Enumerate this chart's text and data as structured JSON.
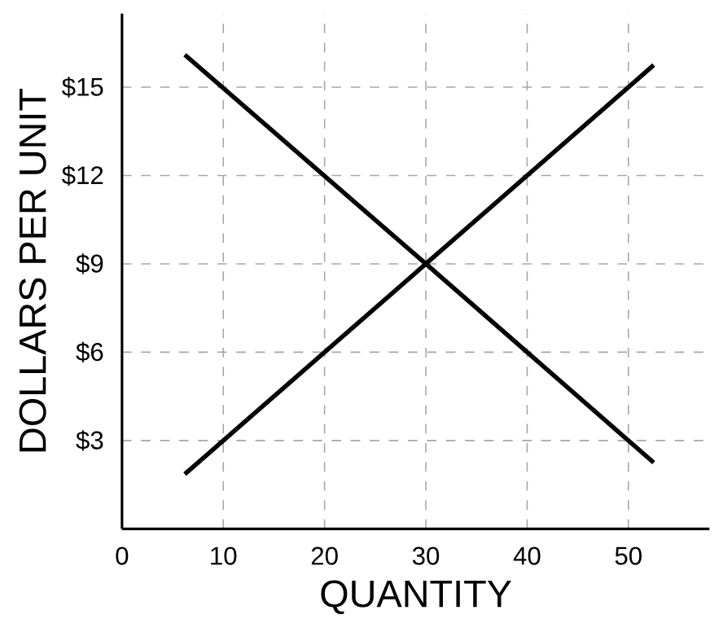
{
  "chart_data": {
    "type": "line",
    "xlabel": "QUANTITY",
    "ylabel": "DOLLARS PER UNIT",
    "series": [
      {
        "color": "#000000",
        "values": [
          16.1,
          9,
          2.25
        ]
      },
      {
        "color": "#000000",
        "values": [
          1.86,
          9,
          15.75
        ]
      }
    ],
    "x": [
      6.2,
      30,
      52.5
    ],
    "xlim": [
      0,
      58
    ],
    "ylim": [
      0,
      17.5
    ],
    "xticks": [
      0,
      10,
      20,
      30,
      40,
      50
    ],
    "yticks": [
      {
        "value": 3,
        "label": "$3"
      },
      {
        "value": 6,
        "label": "$6"
      },
      {
        "value": 9,
        "label": "$9"
      },
      {
        "value": 12,
        "label": "$12"
      },
      {
        "value": 15,
        "label": "$15"
      }
    ],
    "grid": true,
    "line_style": "solid",
    "marker": "none"
  }
}
